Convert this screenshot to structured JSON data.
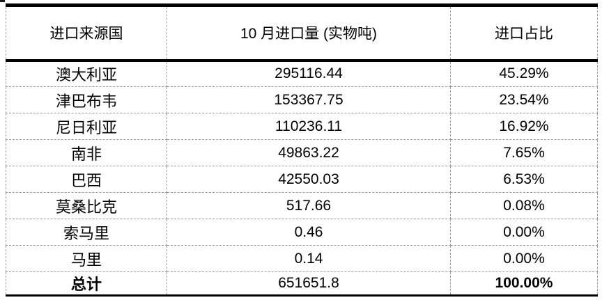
{
  "chart_data": {
    "type": "table",
    "columns": [
      "进口来源国",
      "10 月进口量 (实物吨)",
      "进口占比"
    ],
    "rows": [
      [
        "澳大利亚",
        295116.44,
        "45.29%"
      ],
      [
        "津巴布韦",
        153367.75,
        "23.54%"
      ],
      [
        "尼日利亚",
        110236.11,
        "16.92%"
      ],
      [
        "南非",
        49863.22,
        "7.65%"
      ],
      [
        "巴西",
        42550.03,
        "6.53%"
      ],
      [
        "莫桑比克",
        517.66,
        "0.08%"
      ],
      [
        "索马里",
        0.46,
        "0.00%"
      ],
      [
        "马里",
        0.14,
        "0.00%"
      ]
    ],
    "total_row": [
      "总计",
      "651651.8",
      "100.00%"
    ]
  },
  "colors": {
    "text": "#000000",
    "border_strong": "#000000",
    "border_dashed": "#9a9a9a",
    "background": "#ffffff"
  }
}
